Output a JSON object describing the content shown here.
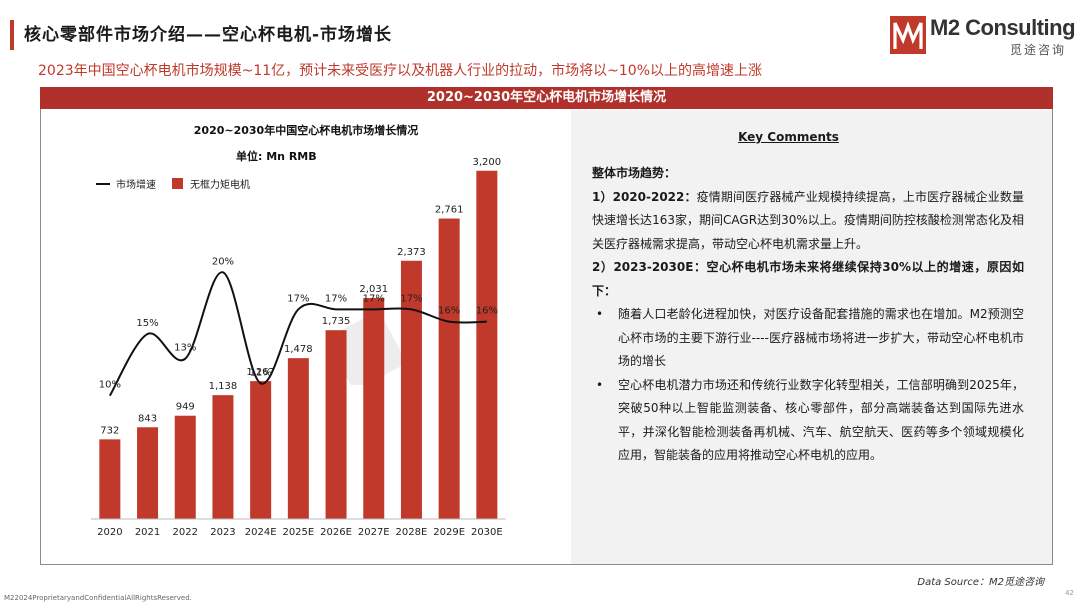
{
  "colors": {
    "accent": "#c0392b",
    "bar": "#c0392b",
    "header_bg": "#b0302b",
    "line": "#111111",
    "panel_bg": "#f2f2f2"
  },
  "page": {
    "title": "核心零部件市场介绍——空心杯电机-市场增长",
    "subtitle": "2023年中国空心杯电机市场规模~11亿，预计未来受医疗以及机器人行业的拉动，市场将以~10%以上的高增速上涨",
    "panel_header": "2020~2030年空心杯电机市场增长情况"
  },
  "logo": {
    "name": "M2 Consulting",
    "sub": "觅途咨询",
    "icon": "m2-logo-icon"
  },
  "chart_data": {
    "type": "bar",
    "title": "2020~2030年中国空心杯电机市场增长情况",
    "unit": "单位: Mn RMB",
    "categories": [
      "2020",
      "2021",
      "2022",
      "2023",
      "2024E",
      "2025E",
      "2026E",
      "2027E",
      "2028E",
      "2029E",
      "2030E"
    ],
    "series": [
      {
        "name": "无框力矩电机",
        "type": "bar",
        "values": [
          732,
          843,
          949,
          1138,
          1267,
          1478,
          1735,
          2031,
          2373,
          2761,
          3200
        ]
      },
      {
        "name": "市场增速",
        "type": "line",
        "values": [
          10,
          15,
          13,
          20,
          11,
          17,
          17,
          17,
          17,
          16,
          16
        ],
        "labels": [
          "10%",
          "15%",
          "13%",
          "20%",
          "11%",
          "17%",
          "17%",
          "17%",
          "17%",
          "16%",
          "16%"
        ]
      }
    ],
    "ylim": [
      0,
      3400
    ],
    "growth_ylim": [
      0,
      30
    ],
    "grid": false,
    "legend": "top-left"
  },
  "comments": {
    "title": "Key Comments",
    "heading": "整体市场趋势：",
    "item1_lead": "1）2020-2022：",
    "item1_text": "疫情期间医疗器械产业规模持续提高，上市医疗器械企业数量快速增长达163家，期间CAGR达到30%以上。疫情期间防控核酸检测常态化及相关医疗器械需求提高，带动空心杯电机需求量上升。",
    "item2_lead": "2）2023-2030E：空心杯电机市场未来将继续保持30%以上的增速，原因如下：",
    "bullets": [
      "随着人口老龄化进程加快，对医疗设备配套措施的需求也在增加。M2预测空心杯市场的主要下游行业----医疗器械市场将进一步扩大，带动空心杯电机市场的增长",
      "空心杯电机潜力市场还和传统行业数字化转型相关，工信部明确到2025年，突破50种以上智能监测装备、核心零部件，部分高端装备达到国际先进水平，并深化智能检测装备再机械、汽车、航空航天、医药等多个领域规模化应用，智能装备的应用将推动空心杯电机的应用。"
    ]
  },
  "footer": {
    "source": "Data Source：M2觅途咨询",
    "confidential": "M22024ProprietaryandConfidentialAllRightsReserved.",
    "page_number": "42"
  }
}
